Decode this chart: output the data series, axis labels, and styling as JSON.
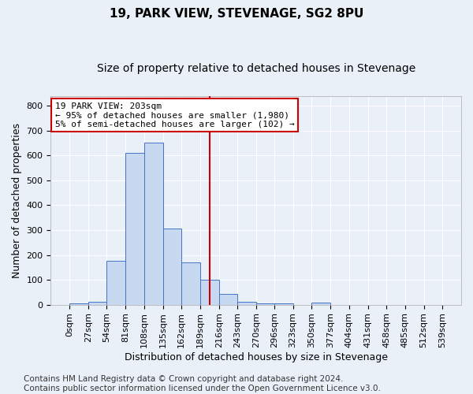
{
  "title": "19, PARK VIEW, STEVENAGE, SG2 8PU",
  "subtitle": "Size of property relative to detached houses in Stevenage",
  "xlabel": "Distribution of detached houses by size in Stevenage",
  "ylabel": "Number of detached properties",
  "bin_edges": [
    0,
    27,
    54,
    81,
    108,
    135,
    162,
    189,
    216,
    243,
    270,
    296,
    323,
    350,
    377,
    404,
    431,
    458,
    485,
    512,
    539
  ],
  "bar_heights": [
    7,
    12,
    175,
    612,
    652,
    305,
    170,
    100,
    44,
    13,
    7,
    5,
    0,
    8,
    0,
    0,
    0,
    0,
    0,
    0
  ],
  "bar_color": "#c6d9f1",
  "bar_edge_color": "#4472c4",
  "property_size": 203,
  "vline_color": "#cc0000",
  "annotation_line1": "19 PARK VIEW: 203sqm",
  "annotation_line2": "← 95% of detached houses are smaller (1,980)",
  "annotation_line3": "5% of semi-detached houses are larger (102) →",
  "annotation_box_color": "#ffffff",
  "annotation_box_edge_color": "#cc0000",
  "ylim": [
    0,
    840
  ],
  "yticks": [
    0,
    100,
    200,
    300,
    400,
    500,
    600,
    700,
    800
  ],
  "background_color": "#eaf0f8",
  "grid_color": "#ffffff",
  "title_fontsize": 11,
  "subtitle_fontsize": 10,
  "tick_fontsize": 8,
  "axis_label_fontsize": 9,
  "annotation_fontsize": 8,
  "footer_text": "Contains HM Land Registry data © Crown copyright and database right 2024.\nContains public sector information licensed under the Open Government Licence v3.0.",
  "footer_fontsize": 7.5
}
